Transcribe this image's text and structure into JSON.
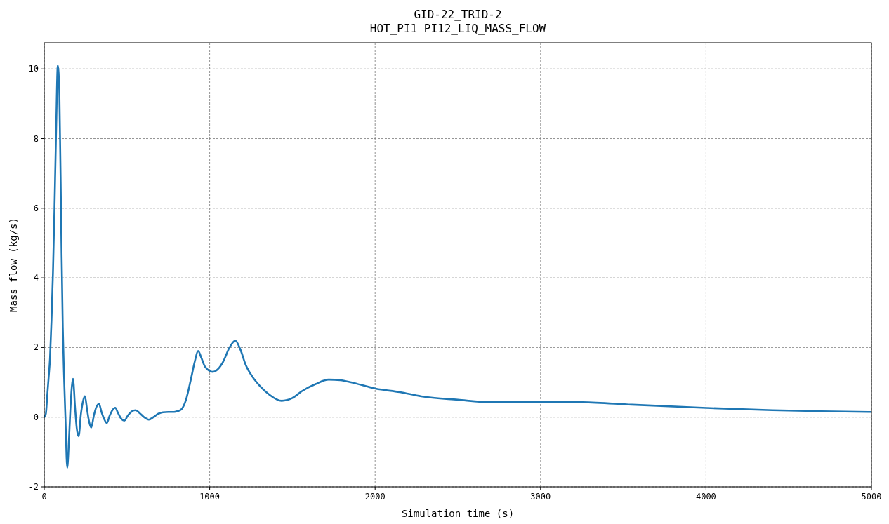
{
  "chart_data": {
    "type": "line",
    "title": "GID-22_TRID-2\nHOT_PI1 PI12_LIQ_MASS_FLOW",
    "xlabel": "Simulation time (s)",
    "ylabel": "Mass flow (kg/s)",
    "xlim": [
      0,
      5000
    ],
    "xticks": [
      0,
      1000,
      2000,
      3000,
      4000,
      5000
    ],
    "ylim": [
      -2,
      10.75
    ],
    "yticks": [
      -2,
      0,
      2,
      4,
      6,
      8,
      10
    ],
    "grid": true,
    "line_style": "solid",
    "series": [
      {
        "color": "#1f77b4",
        "x": [
          0,
          10,
          18,
          26,
          35,
          44,
          53,
          62,
          72,
          82,
          92,
          104,
          112,
          119,
          128,
          139,
          150,
          160,
          174,
          186,
          196,
          208,
          222,
          234,
          246,
          258,
          270,
          284,
          300,
          316,
          331,
          346,
          362,
          378,
          396,
          412,
          429,
          446,
          466,
          484,
          506,
          530,
          552,
          576,
          604,
          632,
          660,
          690,
          717,
          750,
          785,
          810,
          828,
          857,
          887,
          910,
          930,
          950,
          972,
          1019,
          1050,
          1082,
          1120,
          1155,
          1185,
          1218,
          1260,
          1303,
          1360,
          1435,
          1500,
          1558,
          1640,
          1719,
          1790,
          1855,
          2003,
          2150,
          2279,
          2500,
          2704,
          2900,
          3043,
          3255,
          3553,
          3977,
          4401,
          4700,
          5000
        ],
        "values": [
          0,
          0.1,
          0.6,
          1.1,
          1.7,
          2.8,
          4.2,
          6.0,
          8.3,
          10.1,
          9.2,
          5.0,
          2.6,
          1.3,
          0.0,
          -1.45,
          -0.6,
          0.4,
          1.1,
          0.3,
          -0.3,
          -0.55,
          0.1,
          0.45,
          0.6,
          0.25,
          -0.1,
          -0.3,
          0.05,
          0.3,
          0.38,
          0.15,
          -0.05,
          -0.17,
          0.05,
          0.2,
          0.27,
          0.12,
          -0.05,
          -0.1,
          0.05,
          0.17,
          0.2,
          0.12,
          0.0,
          -0.07,
          0.0,
          0.1,
          0.14,
          0.15,
          0.15,
          0.18,
          0.22,
          0.5,
          1.1,
          1.6,
          1.9,
          1.7,
          1.45,
          1.3,
          1.38,
          1.6,
          2.0,
          2.2,
          1.95,
          1.5,
          1.15,
          0.9,
          0.65,
          0.47,
          0.55,
          0.75,
          0.95,
          1.08,
          1.06,
          1.0,
          0.82,
          0.72,
          0.6,
          0.5,
          0.43,
          0.43,
          0.44,
          0.43,
          0.36,
          0.27,
          0.2,
          0.17,
          0.15
        ]
      }
    ]
  }
}
